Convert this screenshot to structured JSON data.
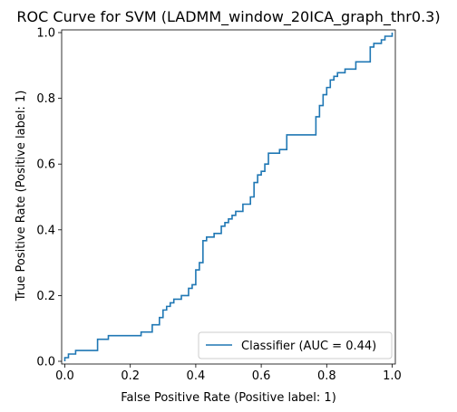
{
  "chart_data": {
    "type": "line",
    "title": "ROC Curve for SVM (LADMM_window_20ICA_graph_thr0.3)",
    "xlabel": "False Positive Rate (Positive label: 1)",
    "ylabel": "True Positive Rate (Positive label: 1)",
    "xlim": [
      0.0,
      1.0
    ],
    "ylim": [
      0.0,
      1.0
    ],
    "xticks": [
      "0.0",
      "0.2",
      "0.4",
      "0.6",
      "0.8",
      "1.0"
    ],
    "yticks": [
      "0.0",
      "0.2",
      "0.4",
      "0.6",
      "0.8",
      "1.0"
    ],
    "grid": false,
    "legend_position": "lower-right",
    "series": [
      {
        "name": "Classifier (AUC = 0.44)",
        "color": "#1f77b4",
        "x": [
          0.0,
          0.0,
          0.011,
          0.011,
          0.033,
          0.033,
          0.1,
          0.1,
          0.133,
          0.133,
          0.233,
          0.233,
          0.267,
          0.267,
          0.289,
          0.289,
          0.3,
          0.3,
          0.311,
          0.311,
          0.322,
          0.322,
          0.333,
          0.333,
          0.356,
          0.356,
          0.378,
          0.378,
          0.389,
          0.389,
          0.4,
          0.4,
          0.411,
          0.411,
          0.422,
          0.422,
          0.433,
          0.433,
          0.456,
          0.456,
          0.478,
          0.478,
          0.489,
          0.489,
          0.5,
          0.5,
          0.511,
          0.511,
          0.522,
          0.522,
          0.544,
          0.544,
          0.567,
          0.567,
          0.578,
          0.578,
          0.589,
          0.589,
          0.6,
          0.6,
          0.611,
          0.611,
          0.622,
          0.622,
          0.656,
          0.656,
          0.678,
          0.678,
          0.767,
          0.767,
          0.778,
          0.778,
          0.789,
          0.789,
          0.8,
          0.8,
          0.811,
          0.811,
          0.822,
          0.822,
          0.833,
          0.833,
          0.856,
          0.856,
          0.889,
          0.889,
          0.933,
          0.933,
          0.944,
          0.944,
          0.967,
          0.967,
          0.978,
          0.978,
          1.0,
          1.0
        ],
        "y": [
          0.0,
          0.011,
          0.011,
          0.022,
          0.022,
          0.033,
          0.033,
          0.067,
          0.067,
          0.078,
          0.078,
          0.089,
          0.089,
          0.111,
          0.111,
          0.133,
          0.133,
          0.156,
          0.156,
          0.167,
          0.167,
          0.178,
          0.178,
          0.189,
          0.189,
          0.2,
          0.2,
          0.222,
          0.222,
          0.233,
          0.233,
          0.278,
          0.278,
          0.3,
          0.3,
          0.367,
          0.367,
          0.378,
          0.378,
          0.389,
          0.389,
          0.411,
          0.411,
          0.422,
          0.422,
          0.433,
          0.433,
          0.444,
          0.444,
          0.456,
          0.456,
          0.478,
          0.478,
          0.5,
          0.5,
          0.544,
          0.544,
          0.567,
          0.567,
          0.578,
          0.578,
          0.6,
          0.6,
          0.633,
          0.633,
          0.644,
          0.644,
          0.689,
          0.689,
          0.744,
          0.744,
          0.778,
          0.778,
          0.811,
          0.811,
          0.833,
          0.833,
          0.856,
          0.856,
          0.867,
          0.867,
          0.878,
          0.878,
          0.889,
          0.889,
          0.911,
          0.911,
          0.956,
          0.956,
          0.967,
          0.967,
          0.978,
          0.978,
          0.989,
          0.989,
          1.0
        ]
      }
    ]
  }
}
